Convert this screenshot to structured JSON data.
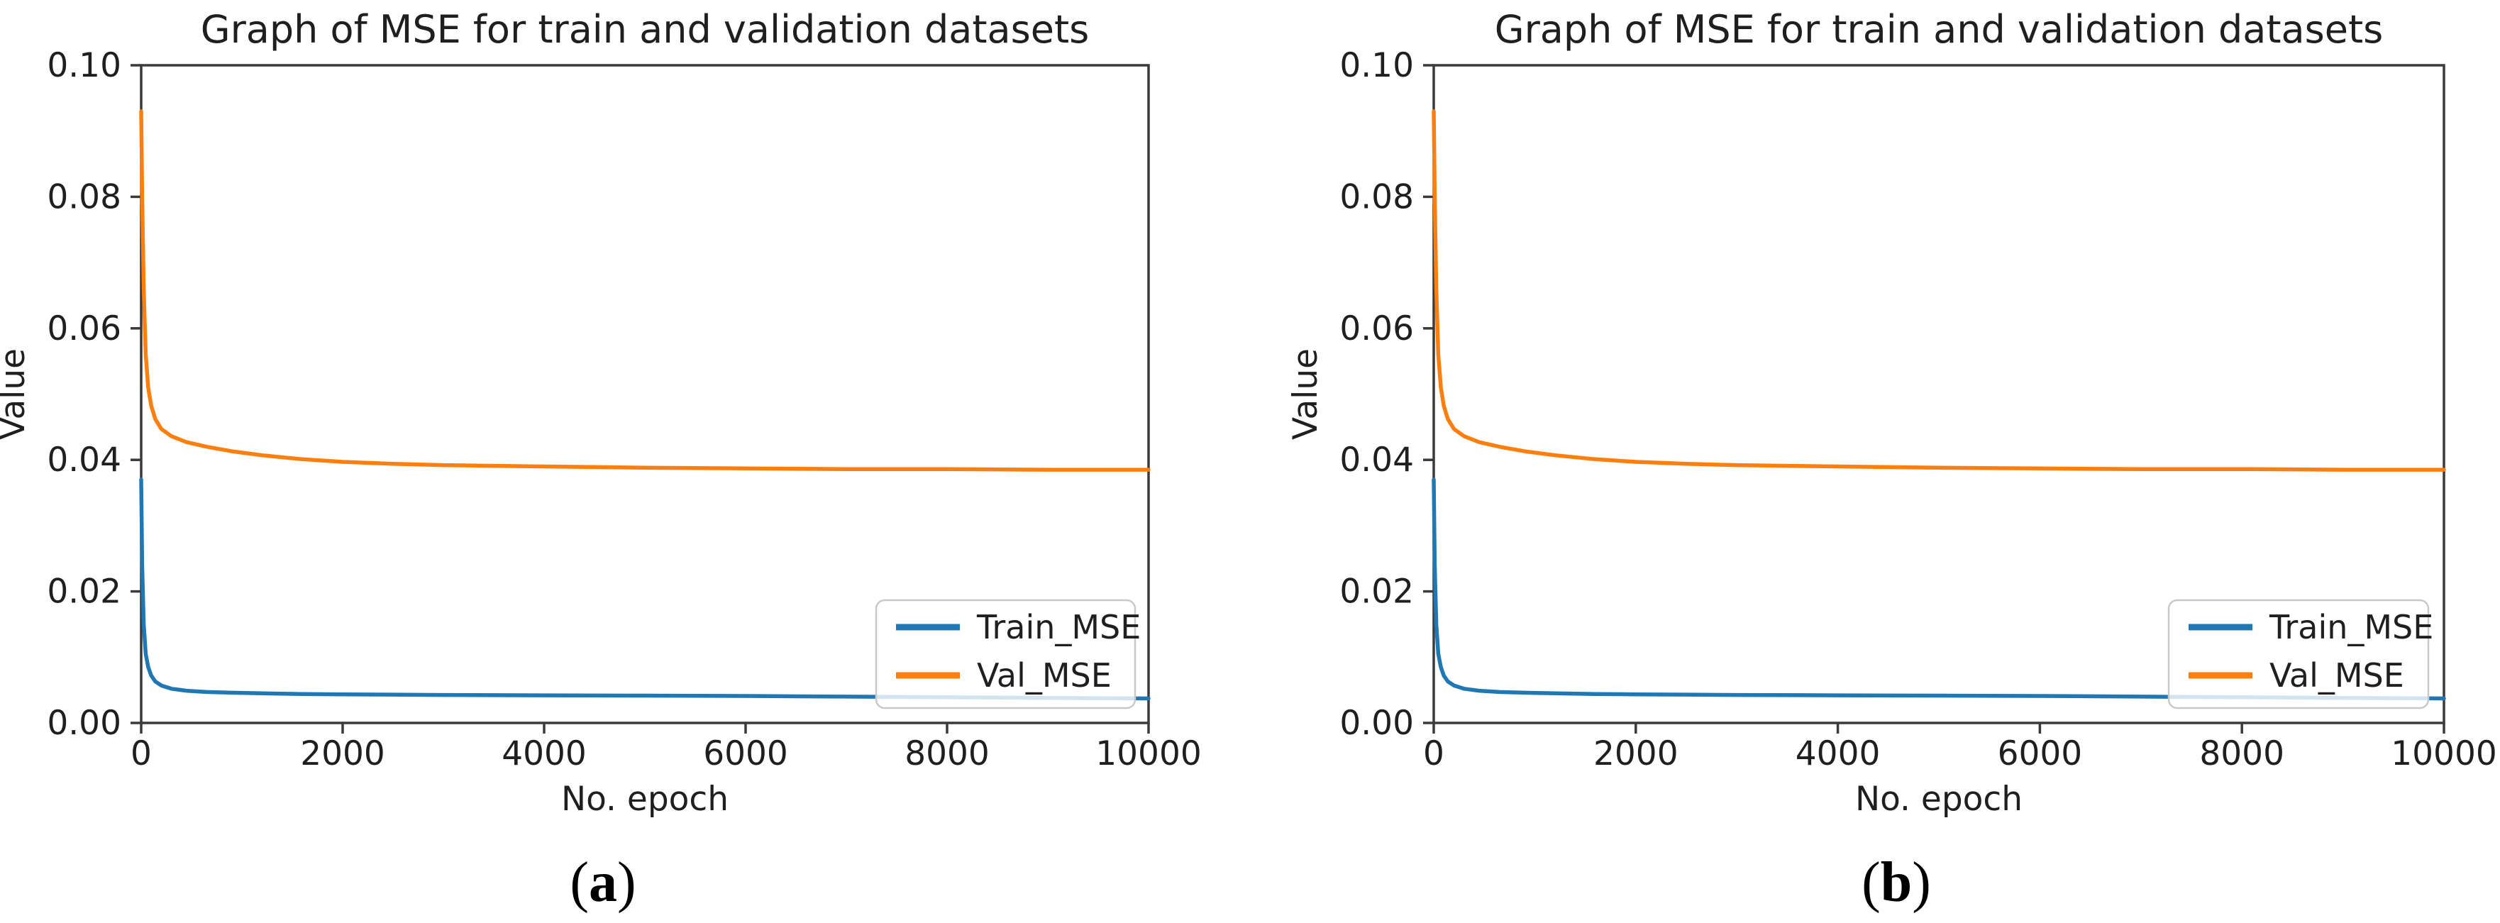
{
  "figure": {
    "background": "#ffffff",
    "panel_count": 2
  },
  "style": {
    "train_color": "#1f77b4",
    "val_color": "#ff7f0e",
    "axis_color": "#3a3a3a",
    "text_color": "#1f1f1f",
    "legend_border_color": "#c9c9c9",
    "legend_fill": "rgba(255,255,255,0.8)"
  },
  "chart_data": [
    {
      "type": "line",
      "title": "Graph of MSE for train and validation datasets",
      "xlabel": "No. epoch",
      "ylabel": "Value",
      "caption": "(a)",
      "caption_parts": {
        "open": "(",
        "letter": "a",
        "close": ")"
      },
      "xlim": [
        0,
        10000
      ],
      "ylim": [
        0.0,
        0.1
      ],
      "grid": false,
      "legend_position": "lower right",
      "xticks": [
        0,
        2000,
        4000,
        6000,
        8000,
        10000
      ],
      "xtick_labels": [
        "0",
        "2000",
        "4000",
        "6000",
        "8000",
        "10000"
      ],
      "yticks": [
        0.0,
        0.02,
        0.04,
        0.06,
        0.08,
        0.1
      ],
      "ytick_labels": [
        "0.00",
        "0.02",
        "0.04",
        "0.06",
        "0.08",
        "0.10"
      ],
      "series": [
        {
          "name": "Train_MSE",
          "color": "#1f77b4",
          "x": [
            0,
            10,
            25,
            45,
            70,
            100,
            140,
            200,
            300,
            450,
            650,
            900,
            1200,
            1600,
            2000,
            2500,
            3000,
            4000,
            5000,
            6000,
            7000,
            8000,
            9000,
            10000
          ],
          "y": [
            0.037,
            0.024,
            0.015,
            0.0105,
            0.0085,
            0.0072,
            0.0063,
            0.0057,
            0.0052,
            0.0049,
            0.0047,
            0.0046,
            0.0045,
            0.0044,
            0.00435,
            0.0043,
            0.00425,
            0.0042,
            0.00415,
            0.0041,
            0.004,
            0.00392,
            0.0038,
            0.00372
          ]
        },
        {
          "name": "Val_MSE",
          "color": "#ff7f0e",
          "x": [
            0,
            10,
            25,
            45,
            70,
            100,
            140,
            200,
            300,
            450,
            650,
            900,
            1200,
            1600,
            2000,
            2500,
            3000,
            4000,
            5000,
            6000,
            7000,
            8000,
            9000,
            10000
          ],
          "y": [
            0.093,
            0.08,
            0.066,
            0.056,
            0.051,
            0.0482,
            0.0462,
            0.0447,
            0.0436,
            0.0427,
            0.042,
            0.0413,
            0.0407,
            0.0401,
            0.0397,
            0.0394,
            0.0392,
            0.039,
            0.0388,
            0.0387,
            0.0386,
            0.0386,
            0.0385,
            0.0385
          ]
        }
      ]
    },
    {
      "type": "line",
      "title": "Graph of MSE for train and validation datasets",
      "xlabel": "No. epoch",
      "ylabel": "Value",
      "caption": "(b)",
      "caption_parts": {
        "open": "(",
        "letter": "b",
        "close": ")"
      },
      "xlim": [
        0,
        10000
      ],
      "ylim": [
        0.0,
        0.1
      ],
      "grid": false,
      "legend_position": "lower right",
      "xticks": [
        0,
        2000,
        4000,
        6000,
        8000,
        10000
      ],
      "xtick_labels": [
        "0",
        "2000",
        "4000",
        "6000",
        "8000",
        "10000"
      ],
      "yticks": [
        0.0,
        0.02,
        0.04,
        0.06,
        0.08,
        0.1
      ],
      "ytick_labels": [
        "0.00",
        "0.02",
        "0.04",
        "0.06",
        "0.08",
        "0.10"
      ],
      "series": [
        {
          "name": "Train_MSE",
          "color": "#1f77b4",
          "x": [
            0,
            10,
            25,
            45,
            70,
            100,
            140,
            200,
            300,
            450,
            650,
            900,
            1200,
            1600,
            2000,
            2500,
            3000,
            4000,
            5000,
            6000,
            7000,
            8000,
            9000,
            10000
          ],
          "y": [
            0.037,
            0.024,
            0.015,
            0.0105,
            0.0085,
            0.0072,
            0.0063,
            0.0057,
            0.0052,
            0.0049,
            0.0047,
            0.0046,
            0.0045,
            0.0044,
            0.00435,
            0.0043,
            0.00425,
            0.0042,
            0.00415,
            0.0041,
            0.004,
            0.00392,
            0.0038,
            0.00372
          ]
        },
        {
          "name": "Val_MSE",
          "color": "#ff7f0e",
          "x": [
            0,
            10,
            25,
            45,
            70,
            100,
            140,
            200,
            300,
            450,
            650,
            900,
            1200,
            1600,
            2000,
            2500,
            3000,
            4000,
            5000,
            6000,
            7000,
            8000,
            9000,
            10000
          ],
          "y": [
            0.093,
            0.08,
            0.066,
            0.056,
            0.051,
            0.0482,
            0.0462,
            0.0447,
            0.0436,
            0.0427,
            0.042,
            0.0413,
            0.0407,
            0.0401,
            0.0397,
            0.0394,
            0.0392,
            0.039,
            0.0388,
            0.0387,
            0.0386,
            0.0386,
            0.0385,
            0.0385
          ]
        }
      ]
    }
  ]
}
